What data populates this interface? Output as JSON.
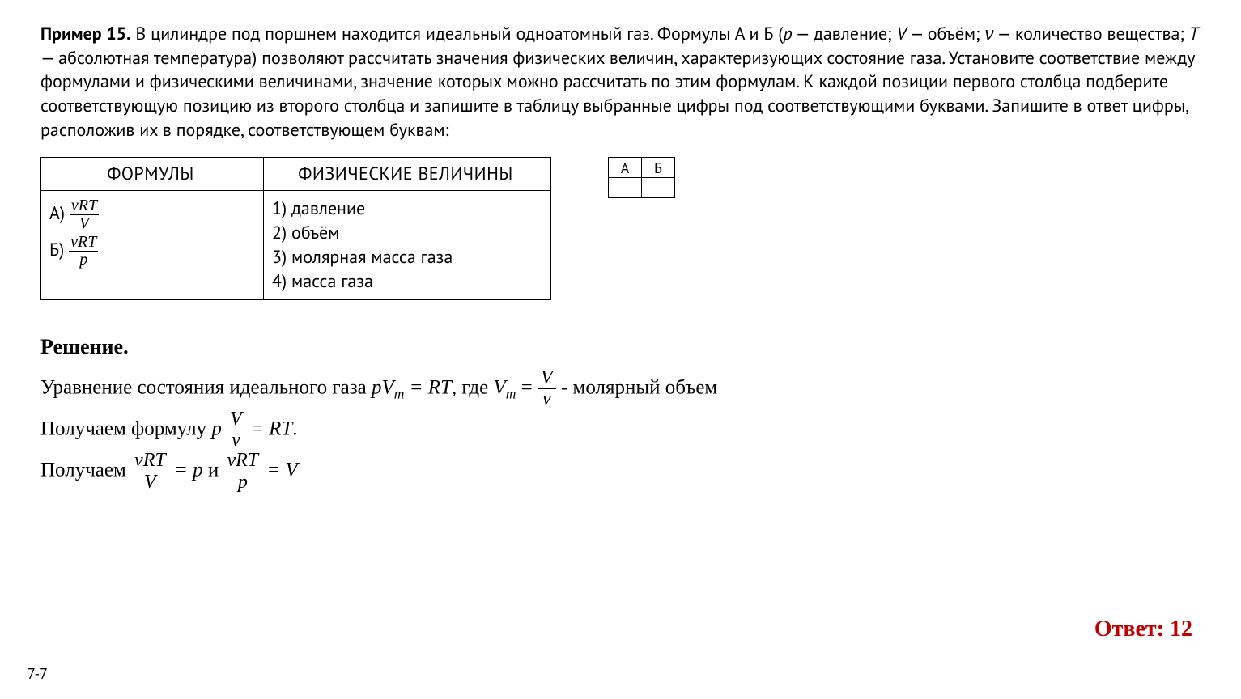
{
  "problem": {
    "lead": "Пример 15.",
    "body_parts": [
      " В цилиндре под поршнем находится идеальный одноатомный газ. Формулы А и Б (",
      " — давление; ",
      " — объём; ",
      " — количество вещества; ",
      " — абсолютная температура) позволяют рассчитать значения физических величин, характеризующих состояние газа. Установите соответствие между формулами и физическими величинами, значение которых можно рассчитать по этим формулам. К каждой позиции первого столбца подберите соответствующую позицию из второго столбца и запишите в таблицу выбранные цифры под соответствующими буквами. Запишите в ответ цифры, расположив их в порядке, соответствующем буквам:"
    ],
    "symbols": {
      "p": "p",
      "V": "V",
      "nu": "ν",
      "T": "T"
    }
  },
  "formulas_table": {
    "header_formulas": "ФОРМУЛЫ",
    "header_values": "ФИЗИЧЕСКИЕ ВЕЛИЧИНЫ",
    "formula_A_label": "А)",
    "formula_A_num": "νRT",
    "formula_A_den": "V",
    "formula_B_label": "Б)",
    "formula_B_num": "νRT",
    "formula_B_den": "p",
    "list": [
      "1) давление",
      "2) объём",
      "3) молярная масса газа",
      "4) масса газа"
    ]
  },
  "answer_grid": {
    "headers": [
      "А",
      "Б"
    ],
    "cells": [
      "",
      ""
    ]
  },
  "solution": {
    "heading": "Решение.",
    "line1_a": "Уравнение состояния идеального газа ",
    "line1_eq1_left": "pV",
    "line1_eq1_sub": "m",
    "line1_eq1_right": " = RT",
    "line1_b": ", где ",
    "line1_Vm": "V",
    "line1_Vm_sub": "m",
    "line1_eq2_eq": " = ",
    "line1_frac_num": "V",
    "line1_frac_den": "ν",
    "line1_c": " - молярный объем",
    "line2_a": "Получаем формулу  ",
    "line2_p": "p",
    "line2_frac_num": "V",
    "line2_frac_den": "ν",
    "line2_b": " = RT",
    "line2_dot": ".",
    "line3_a": "Получаем ",
    "line3_frac1_num": "νRT",
    "line3_frac1_den": "V",
    "line3_mid1": " = p",
    "line3_and": " и ",
    "line3_frac2_num": "νRT",
    "line3_frac2_den": "p",
    "line3_mid2": " = V"
  },
  "answer": {
    "label": "Ответ: ",
    "value": "12",
    "color": "#c00000"
  },
  "page_number": "7-7",
  "styling": {
    "body_font": "PT Sans / Trebuchet-like",
    "solution_font": "Times New Roman",
    "base_font_size_pt": 16,
    "solution_font_size_pt": 19,
    "answer_font_size_pt": 21,
    "background_color": "#ffffff",
    "text_color": "#000000",
    "border_color": "#000000"
  }
}
